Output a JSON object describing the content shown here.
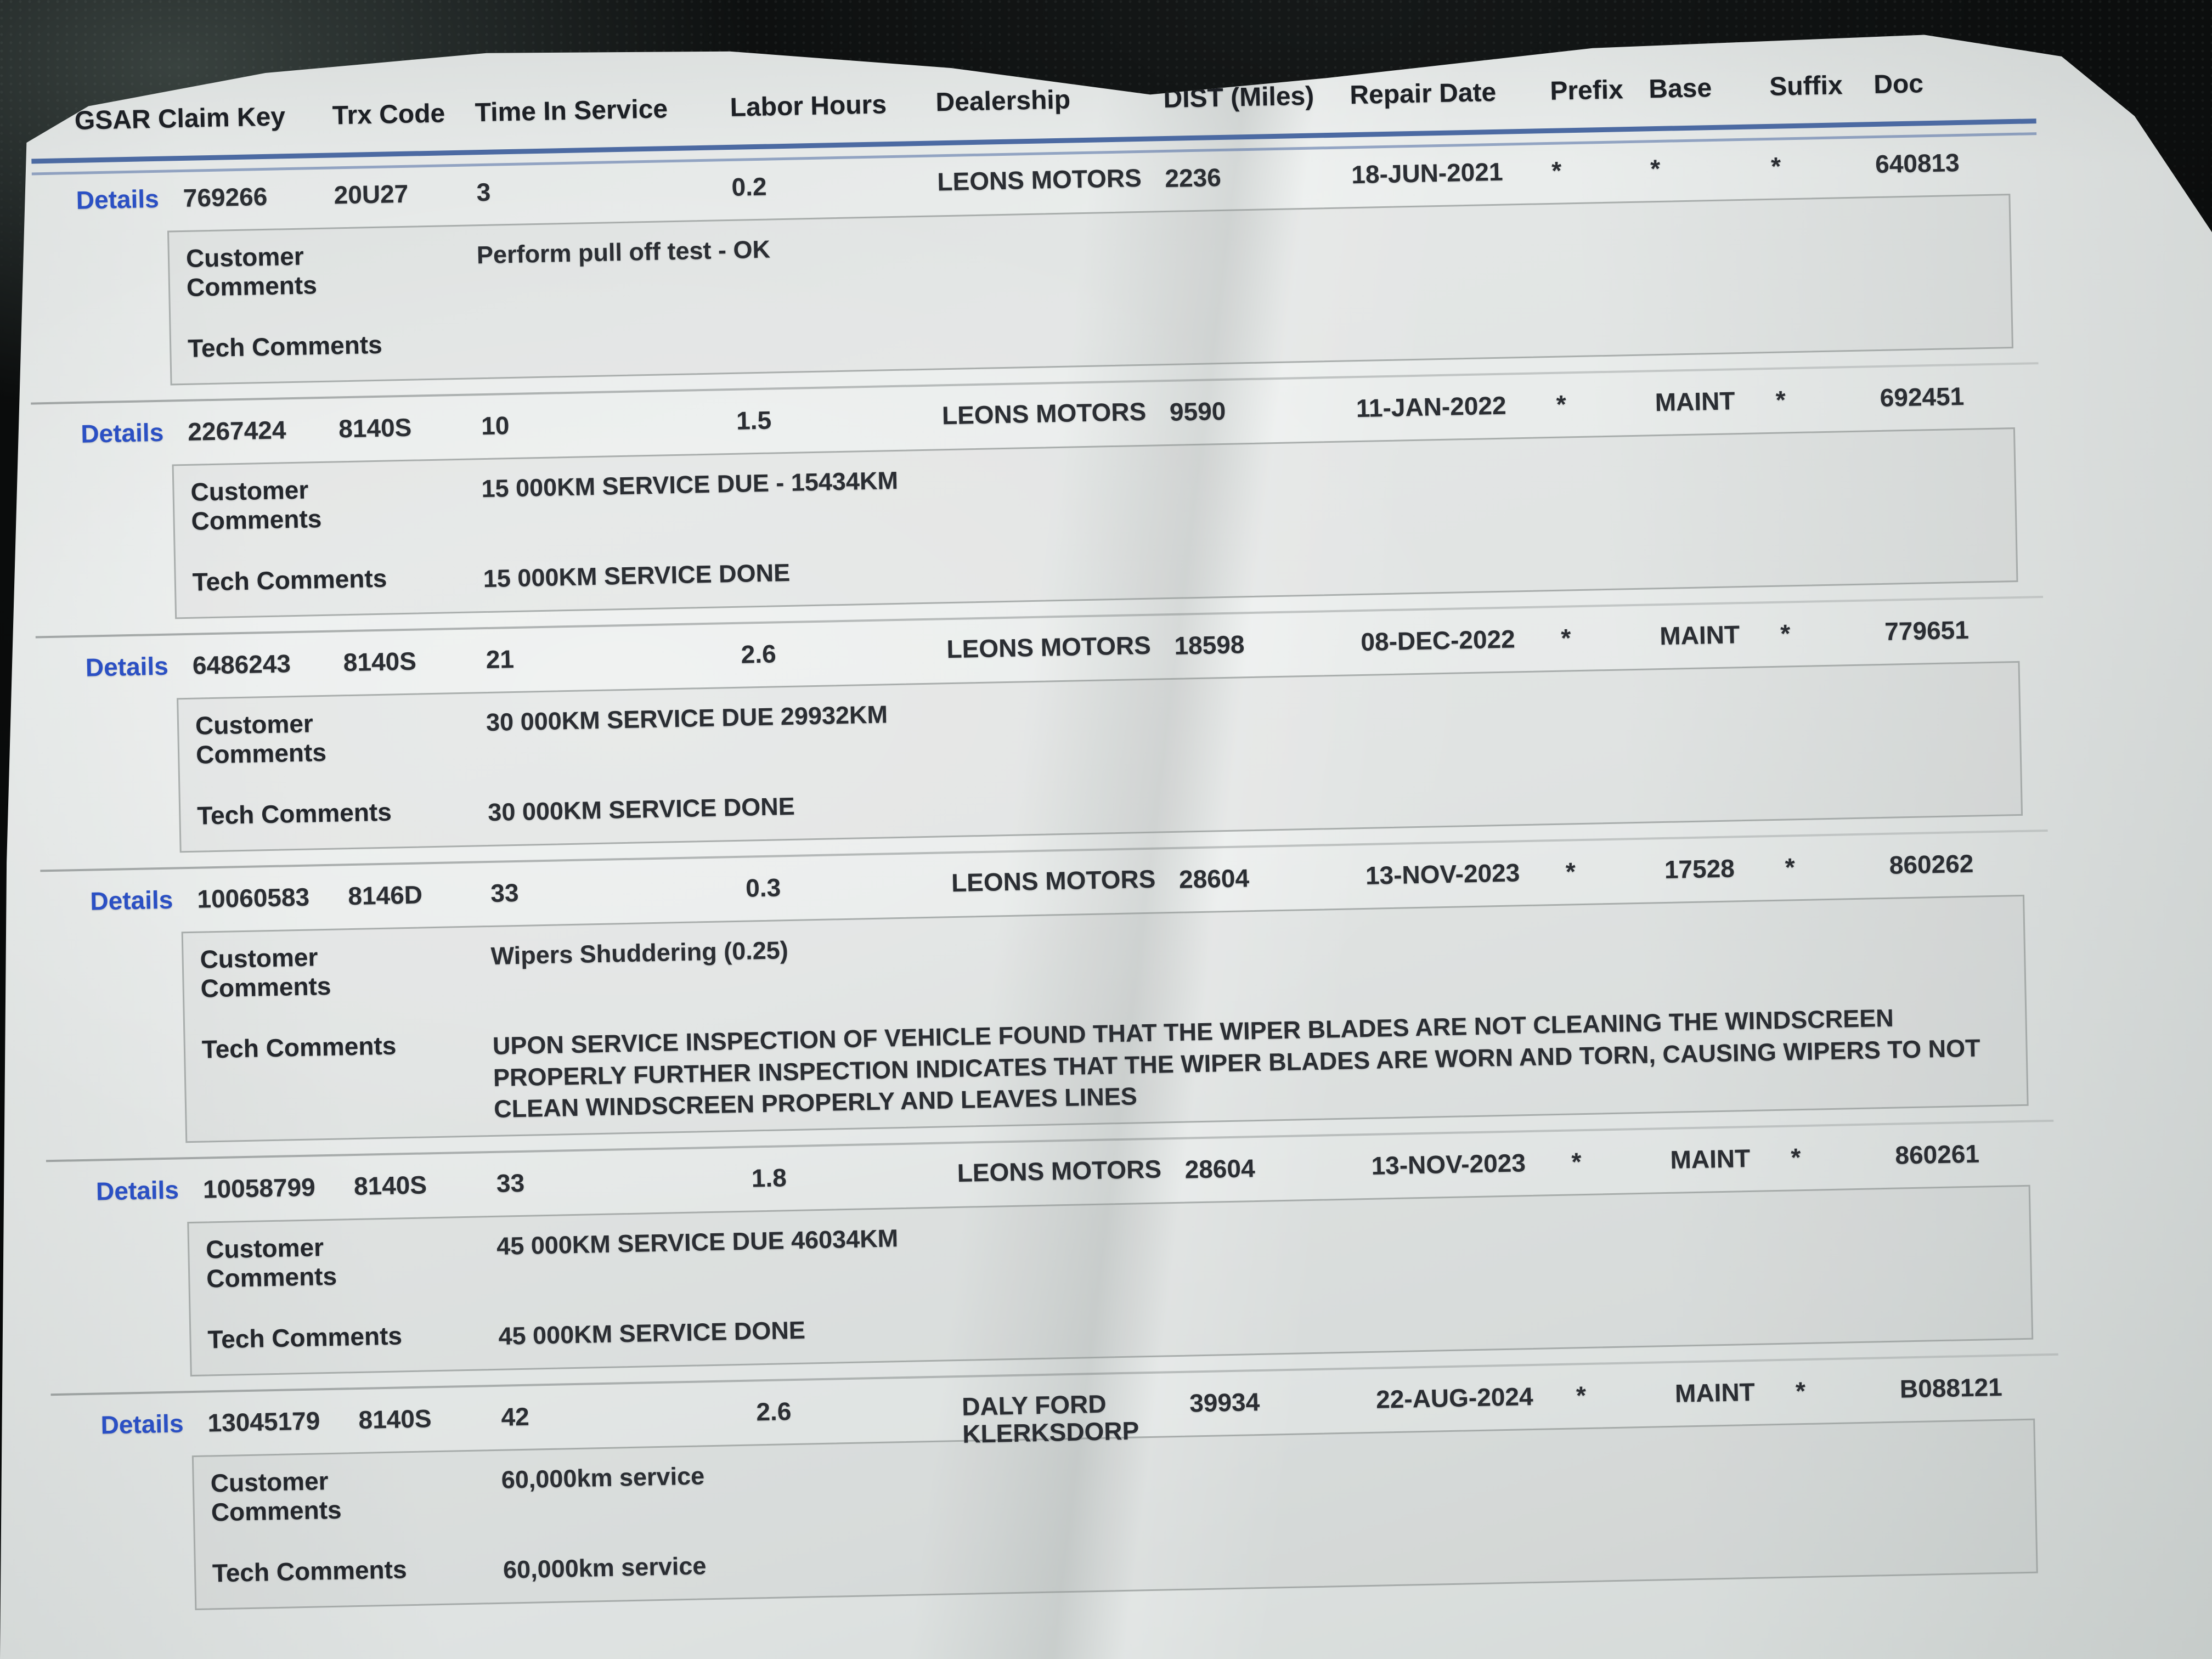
{
  "report": {
    "details_label": "Details",
    "customer_comments_label": "Customer\nComments",
    "tech_comments_label": "Tech Comments",
    "columns": [
      "GSAR Claim Key",
      "Trx Code",
      "Time In Service",
      "Labor Hours",
      "Dealership",
      "DIST (Miles)",
      "Repair Date",
      "Prefix",
      "Base",
      "Suffix",
      "Doc"
    ],
    "colors": {
      "link_blue": "#2b50c4",
      "header_rule_blue": "#4c6aa2",
      "paper": "#e7eae9",
      "ink": "#2b2e33"
    },
    "rows": [
      {
        "claim_key": "769266",
        "trx_code": "20U27",
        "time_in_service": "3",
        "labor_hours": "0.2",
        "dealership": "LEONS MOTORS",
        "dist_miles": "2236",
        "repair_date": "18-JUN-2021",
        "prefix": "*",
        "base": "*",
        "suffix": "*",
        "doc": "640813",
        "customer_comments": "Perform pull off test - OK",
        "tech_comments": ""
      },
      {
        "claim_key": "2267424",
        "trx_code": "8140S",
        "time_in_service": "10",
        "labor_hours": "1.5",
        "dealership": "LEONS MOTORS",
        "dist_miles": "9590",
        "repair_date": "11-JAN-2022",
        "prefix": "*",
        "base": "MAINT",
        "suffix": "*",
        "doc": "692451",
        "customer_comments": "15 000KM SERVICE DUE - 15434KM",
        "tech_comments": "15 000KM SERVICE DONE"
      },
      {
        "claim_key": "6486243",
        "trx_code": "8140S",
        "time_in_service": "21",
        "labor_hours": "2.6",
        "dealership": "LEONS MOTORS",
        "dist_miles": "18598",
        "repair_date": "08-DEC-2022",
        "prefix": "*",
        "base": "MAINT",
        "suffix": "*",
        "doc": "779651",
        "customer_comments": "30 000KM SERVICE DUE 29932KM",
        "tech_comments": "30 000KM SERVICE DONE"
      },
      {
        "claim_key": "10060583",
        "trx_code": "8146D",
        "time_in_service": "33",
        "labor_hours": "0.3",
        "dealership": "LEONS MOTORS",
        "dist_miles": "28604",
        "repair_date": "13-NOV-2023",
        "prefix": "*",
        "base": "17528",
        "suffix": "*",
        "doc": "860262",
        "customer_comments": "Wipers Shuddering (0.25)",
        "tech_comments": "UPON SERVICE INSPECTION OF VEHICLE FOUND THAT THE WIPER BLADES ARE NOT CLEANING THE WINDSCREEN PROPERLY FURTHER INSPECTION INDICATES THAT THE WIPER BLADES ARE WORN AND TORN, CAUSING WIPERS TO NOT CLEAN WINDSCREEN PROPERLY AND LEAVES LINES"
      },
      {
        "claim_key": "10058799",
        "trx_code": "8140S",
        "time_in_service": "33",
        "labor_hours": "1.8",
        "dealership": "LEONS MOTORS",
        "dist_miles": "28604",
        "repair_date": "13-NOV-2023",
        "prefix": "*",
        "base": "MAINT",
        "suffix": "*",
        "doc": "860261",
        "customer_comments": "45 000KM SERVICE DUE 46034KM",
        "tech_comments": "45 000KM SERVICE DONE"
      },
      {
        "claim_key": "13045179",
        "trx_code": "8140S",
        "time_in_service": "42",
        "labor_hours": "2.6",
        "dealership": "DALY FORD KLERKSDORP",
        "dist_miles": "39934",
        "repair_date": "22-AUG-2024",
        "prefix": "*",
        "base": "MAINT",
        "suffix": "*",
        "doc": "B088121",
        "customer_comments": "60,000km service",
        "tech_comments": "60,000km service"
      }
    ]
  }
}
